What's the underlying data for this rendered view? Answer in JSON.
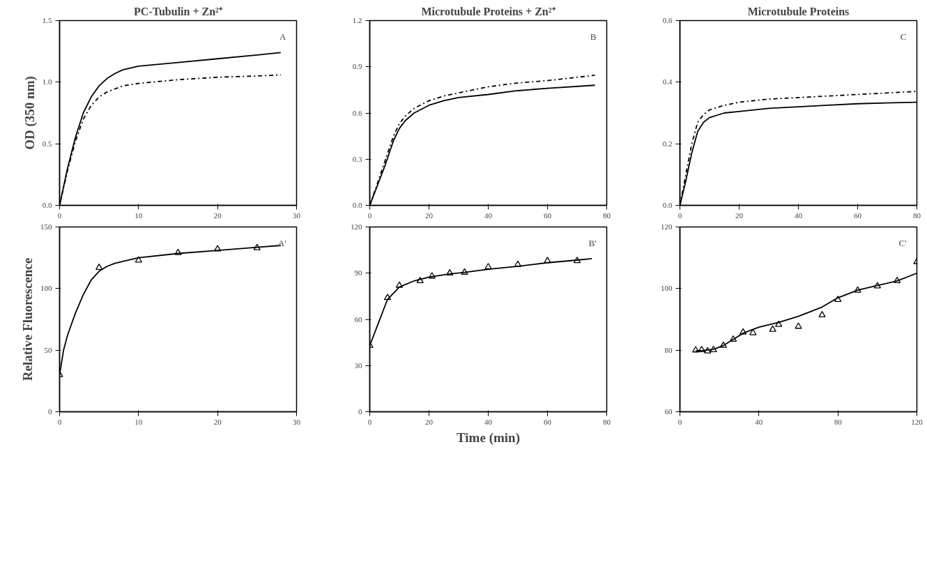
{
  "chart_data": [
    {
      "type": "line",
      "title": "PC-Tubulin + Zn²⁺",
      "ylabel": "OD (350 nm)",
      "annotations": [
        "A"
      ],
      "xlim": [
        0,
        30
      ],
      "xticks": [
        0,
        10,
        20,
        30
      ],
      "ylim": [
        0,
        1.5
      ],
      "yticks": [
        {
          "value": 0,
          "label": "0.0"
        },
        {
          "value": 0.5,
          "label": "0.5"
        },
        {
          "value": 1,
          "label": "1.0"
        },
        {
          "value": 1.5,
          "label": "1.5"
        }
      ],
      "series": [
        {
          "color": "#000000",
          "line_style": "solid",
          "x": [
            0,
            1,
            2,
            3,
            4,
            5,
            6,
            7,
            8,
            10,
            15,
            20,
            25,
            28
          ],
          "values": [
            0,
            0.3,
            0.55,
            0.75,
            0.88,
            0.97,
            1.03,
            1.07,
            1.1,
            1.13,
            1.16,
            1.19,
            1.22,
            1.24
          ]
        },
        {
          "color": "#000000",
          "line_style": "dashdot",
          "x": [
            0,
            1,
            2,
            3,
            4,
            5,
            6,
            8,
            10,
            15,
            20,
            25,
            28
          ],
          "values": [
            0,
            0.28,
            0.52,
            0.7,
            0.81,
            0.88,
            0.92,
            0.97,
            0.99,
            1.02,
            1.04,
            1.05,
            1.06
          ]
        }
      ]
    },
    {
      "type": "line",
      "title": "Microtubule Proteins + Zn²⁺",
      "annotations": [
        "B"
      ],
      "xlim": [
        0,
        80
      ],
      "xticks": [
        0,
        20,
        40,
        60,
        80
      ],
      "ylim": [
        0,
        1.2
      ],
      "yticks": [
        {
          "value": 0,
          "label": "0.0"
        },
        {
          "value": 0.3,
          "label": "0.3"
        },
        {
          "value": 0.6,
          "label": "0.6"
        },
        {
          "value": 0.9,
          "label": "0.9"
        },
        {
          "value": 1.2,
          "label": "1.2"
        }
      ],
      "series": [
        {
          "color": "#000000",
          "line_style": "solid",
          "x": [
            0,
            2,
            5,
            8,
            10,
            12,
            15,
            20,
            25,
            30,
            40,
            50,
            60,
            76
          ],
          "values": [
            0,
            0.1,
            0.25,
            0.42,
            0.5,
            0.55,
            0.6,
            0.65,
            0.68,
            0.7,
            0.72,
            0.745,
            0.76,
            0.78
          ]
        },
        {
          "color": "#000000",
          "line_style": "dashdot",
          "x": [
            0,
            2,
            5,
            8,
            10,
            12,
            15,
            20,
            25,
            30,
            40,
            50,
            60,
            76
          ],
          "values": [
            0,
            0.11,
            0.28,
            0.45,
            0.53,
            0.58,
            0.63,
            0.68,
            0.71,
            0.73,
            0.77,
            0.795,
            0.81,
            0.845
          ]
        }
      ]
    },
    {
      "type": "line",
      "title": "Microtubule Proteins",
      "annotations": [
        "C"
      ],
      "xlim": [
        0,
        80
      ],
      "xticks": [
        0,
        20,
        40,
        60,
        80
      ],
      "ylim": [
        0,
        0.6
      ],
      "yticks": [
        {
          "value": 0,
          "label": "0.0"
        },
        {
          "value": 0.2,
          "label": "0.2"
        },
        {
          "value": 0.4,
          "label": "0.4"
        },
        {
          "value": 0.6,
          "label": "0.6"
        }
      ],
      "series": [
        {
          "color": "#000000",
          "line_style": "solid",
          "x": [
            0,
            2,
            4,
            6,
            8,
            10,
            15,
            20,
            30,
            40,
            50,
            60,
            80
          ],
          "values": [
            0,
            0.08,
            0.17,
            0.24,
            0.27,
            0.285,
            0.3,
            0.305,
            0.315,
            0.32,
            0.325,
            0.33,
            0.335
          ]
        },
        {
          "color": "#000000",
          "line_style": "dashdot",
          "x": [
            0,
            2,
            4,
            6,
            8,
            10,
            15,
            20,
            30,
            40,
            50,
            60,
            80
          ],
          "values": [
            0,
            0.1,
            0.2,
            0.27,
            0.295,
            0.31,
            0.325,
            0.335,
            0.345,
            0.35,
            0.355,
            0.36,
            0.37
          ]
        }
      ]
    },
    {
      "type": "scatter",
      "ylabel": "Relative Fluorescence",
      "annotations": [
        "A'"
      ],
      "xlim": [
        0,
        30
      ],
      "xticks": [
        0,
        10,
        20,
        30
      ],
      "ylim": [
        0,
        150
      ],
      "yticks": [
        0,
        50,
        100,
        150
      ],
      "series": [
        {
          "type": "scatter",
          "marker": "triangle",
          "color": "#000000",
          "x": [
            0,
            5,
            10,
            15,
            20,
            25
          ],
          "values": [
            30,
            117,
            123,
            129,
            132,
            133
          ]
        },
        {
          "type": "line",
          "line_style": "solid",
          "color": "#000000",
          "x": [
            0,
            0.5,
            1,
            2,
            3,
            4,
            5,
            6,
            7,
            8,
            10,
            15,
            20,
            25,
            28
          ],
          "values": [
            30,
            50,
            62,
            80,
            95,
            107,
            114,
            118,
            120.5,
            122,
            125,
            128.5,
            131,
            133.5,
            135
          ]
        }
      ]
    },
    {
      "type": "scatter",
      "xlabel": "Time (min)",
      "annotations": [
        "B'"
      ],
      "xlim": [
        0,
        80
      ],
      "xticks": [
        0,
        20,
        40,
        60,
        80
      ],
      "ylim": [
        0,
        120
      ],
      "yticks": [
        0,
        30,
        60,
        90,
        120
      ],
      "series": [
        {
          "type": "scatter",
          "marker": "triangle",
          "color": "#000000",
          "x": [
            0,
            6,
            10,
            17,
            21,
            27,
            32,
            40,
            50,
            60,
            70
          ],
          "values": [
            43,
            74,
            82,
            85,
            88,
            90,
            90.5,
            94,
            95.5,
            98,
            98
          ]
        },
        {
          "type": "line",
          "line_style": "solid",
          "color": "#000000",
          "x": [
            0,
            3,
            6,
            10,
            15,
            20,
            27,
            32,
            40,
            50,
            60,
            70,
            75
          ],
          "values": [
            43,
            58,
            73,
            81,
            85,
            87.5,
            89.5,
            90.5,
            92.5,
            94.5,
            96.8,
            98.5,
            99.5
          ]
        }
      ]
    },
    {
      "type": "scatter",
      "annotations": [
        "C'"
      ],
      "xlim": [
        0,
        120
      ],
      "xticks": [
        0,
        40,
        80,
        120
      ],
      "ylim": [
        60,
        120
      ],
      "yticks": [
        60,
        80,
        100,
        120
      ],
      "series": [
        {
          "type": "scatter",
          "marker": "triangle",
          "color": "#000000",
          "x": [
            8,
            11,
            14,
            17,
            22,
            27,
            32,
            37,
            47,
            50,
            60,
            72,
            80,
            90,
            100,
            110,
            120
          ],
          "values": [
            80,
            80.1,
            79.7,
            80.1,
            81.5,
            83.5,
            85.8,
            85.6,
            86.7,
            88.3,
            87.7,
            91.4,
            96.4,
            99.4,
            100.8,
            102.5,
            108.7
          ]
        },
        {
          "type": "line",
          "line_style": "solid",
          "color": "#000000",
          "x": [
            8,
            12,
            17,
            22,
            27,
            32,
            40,
            50,
            60,
            72,
            80,
            90,
            100,
            110,
            120
          ],
          "values": [
            79.8,
            79.9,
            80.3,
            81.5,
            83.5,
            85.5,
            87.5,
            89,
            91,
            94,
            97,
            99.5,
            101,
            102.5,
            105
          ]
        }
      ]
    }
  ]
}
